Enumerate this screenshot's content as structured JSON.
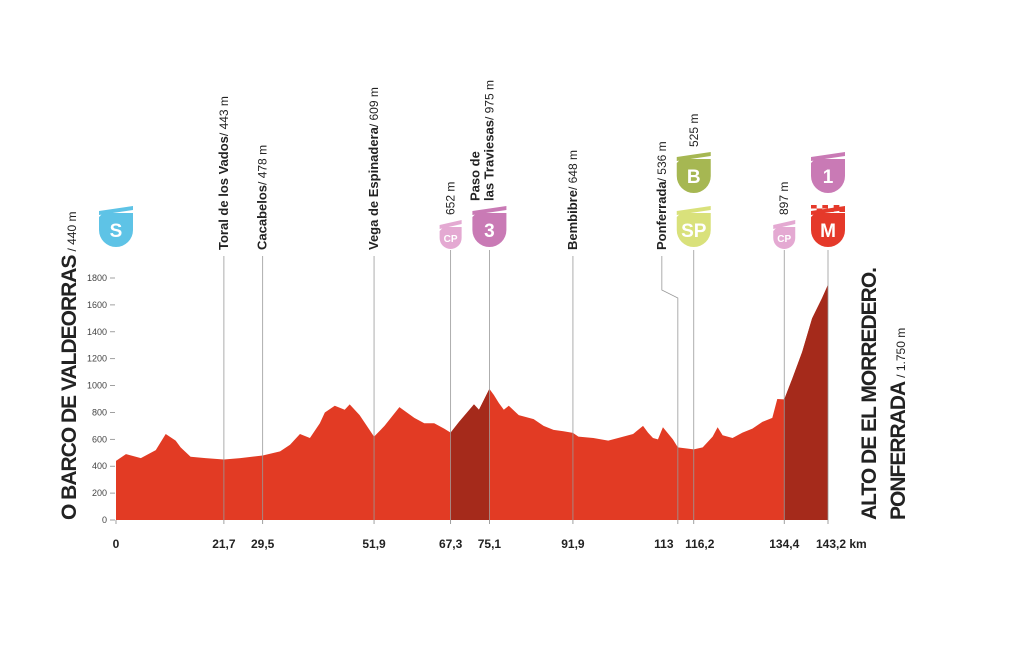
{
  "chart_data": {
    "type": "area",
    "start": {
      "name": "O BARCO DE VALDEORRAS",
      "elev": "/ 440 m",
      "badge": "S"
    },
    "finish": {
      "name": [
        "ALTO DE EL MORREDERO.",
        "PONFERRADA"
      ],
      "elev": "/ 1.750 m"
    },
    "x": [
      0,
      2,
      5,
      8,
      10,
      12,
      13,
      15,
      18,
      21.7,
      25,
      29.5,
      33,
      35,
      37,
      39,
      41,
      42,
      44,
      46,
      47,
      49,
      51.9,
      54,
      57,
      60,
      62,
      64,
      66,
      67.3,
      69,
      72,
      73,
      75.1,
      76,
      77,
      78,
      79,
      81,
      84,
      86,
      88,
      90,
      91.9,
      93,
      96,
      99,
      101,
      104,
      106,
      107,
      108,
      109,
      110,
      112,
      113,
      116.2,
      118,
      120,
      121,
      122,
      124,
      126,
      128,
      130,
      132,
      133,
      134.4,
      136,
      138,
      140,
      142,
      143.2
    ],
    "values": [
      440,
      490,
      460,
      520,
      640,
      590,
      540,
      470,
      460,
      450,
      460,
      480,
      510,
      560,
      640,
      610,
      720,
      800,
      850,
      820,
      860,
      780,
      620,
      700,
      840,
      760,
      720,
      720,
      680,
      650,
      730,
      860,
      820,
      975,
      930,
      870,
      820,
      850,
      780,
      750,
      700,
      670,
      660,
      648,
      620,
      610,
      590,
      610,
      640,
      700,
      650,
      610,
      600,
      690,
      600,
      540,
      525,
      540,
      620,
      690,
      630,
      610,
      650,
      680,
      730,
      760,
      900,
      897,
      1050,
      1250,
      1500,
      1650,
      1750
    ],
    "color": "#e23b24",
    "climb_color": "#a52a1b",
    "climbs": [
      {
        "from": 67.3,
        "to": 75.1
      },
      {
        "from": 134.4,
        "to": 143.2
      }
    ],
    "xlim": [
      0,
      143.2
    ],
    "ylim": [
      0,
      1800
    ],
    "yticks": [
      0,
      200,
      400,
      600,
      800,
      1000,
      1200,
      1400,
      1600,
      1800
    ],
    "xticks": [
      0,
      {
        "value": 21.7,
        "label": "21,7"
      },
      {
        "value": 29.5,
        "label": "29,5"
      },
      {
        "value": 51.9,
        "label": "51,9"
      },
      {
        "value": 67.3,
        "label": "67,3"
      },
      {
        "value": 75.1,
        "label": "75,1"
      },
      {
        "value": 91.9,
        "label": "91,9"
      },
      113,
      {
        "value": 116.2,
        "label": "116,2"
      },
      {
        "value": 134.4,
        "label": "134,4"
      },
      {
        "value": 143.2,
        "label": "143,2 km"
      }
    ],
    "badge_colors": {
      "S": "#5ec3e6",
      "CP": "#e4a9d2",
      "3": "#c97ab5",
      "SP": "#d9e17b",
      "B": "#a6b752",
      "1": "#c97ab5",
      "M": "#e5392a"
    },
    "waypoints": [
      {
        "km": 21.7,
        "name": [
          "Toral de los Vados"
        ],
        "elev": "/ 443 m"
      },
      {
        "km": 29.5,
        "name": [
          "Cacabelos"
        ],
        "elev": "/ 478 m"
      },
      {
        "km": 51.9,
        "name": [
          "Vega de Espinadera"
        ],
        "elev": "/ 609 m"
      },
      {
        "km": 67.3,
        "elev": "652 m",
        "badges": [
          "CP"
        ]
      },
      {
        "km": 75.1,
        "name": [
          "Paso de",
          "las Traviesas"
        ],
        "elev": "/ 975 m",
        "badges": [
          "3"
        ]
      },
      {
        "km": 91.9,
        "name": [
          "Bembibre"
        ],
        "elev": "/ 648 m"
      },
      {
        "km": 113,
        "name": [
          "Ponferrada"
        ],
        "elev": "/ 536 m"
      },
      {
        "km": 116.2,
        "elev": "525 m",
        "badges": [
          "SP",
          "B"
        ]
      },
      {
        "km": 134.4,
        "elev": "897 m",
        "badges": [
          "CP"
        ]
      },
      {
        "km": 143.2,
        "badges": [
          "M",
          "1"
        ]
      }
    ]
  }
}
